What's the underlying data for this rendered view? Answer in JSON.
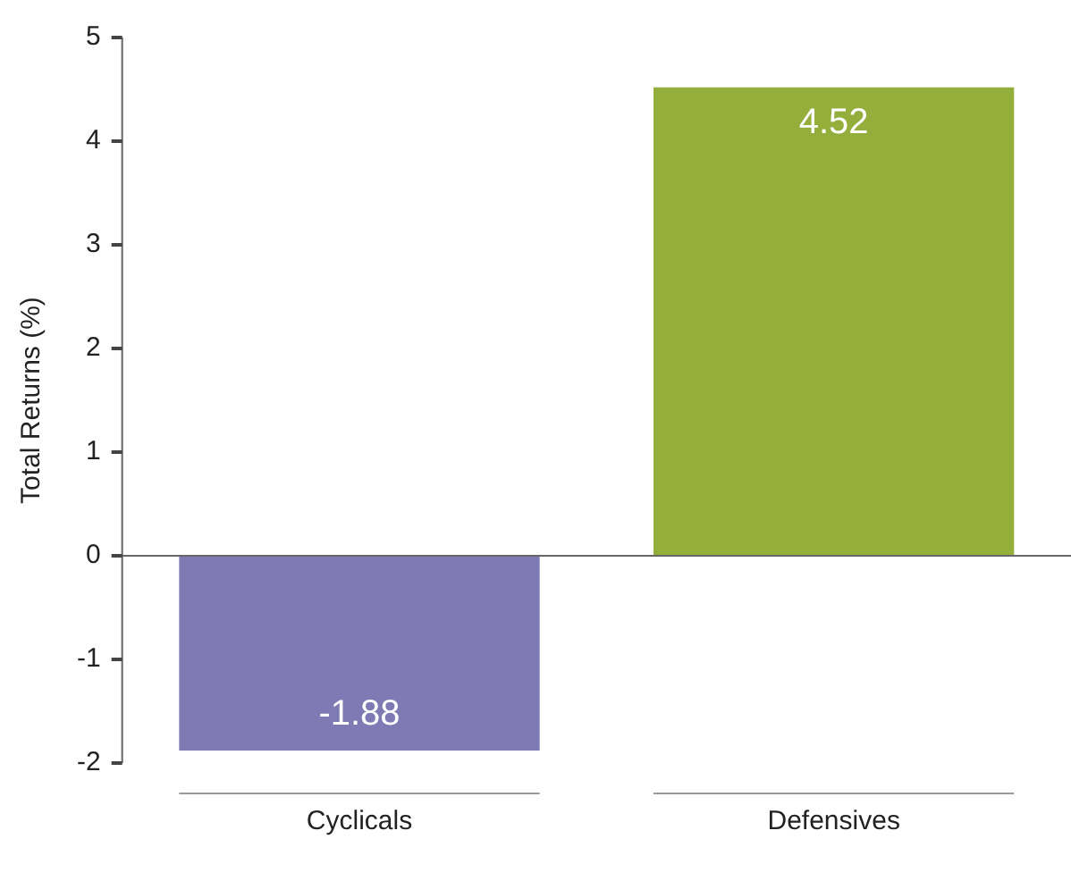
{
  "chart_data": {
    "type": "bar",
    "ylabel": "Total Returns (%)",
    "categories": [
      "Cyclicals",
      "Defensives"
    ],
    "values": [
      -1.88,
      4.52
    ],
    "colors": [
      "#7f7ab4",
      "#94ae3c"
    ],
    "ylim": [
      -2,
      5
    ],
    "yticks": [
      -2,
      -1,
      0,
      1,
      2,
      3,
      4,
      5
    ],
    "ref_lines": [
      {
        "axis": "y",
        "value": 0,
        "color": "#666666"
      }
    ],
    "legend": false,
    "data_labels": true
  }
}
